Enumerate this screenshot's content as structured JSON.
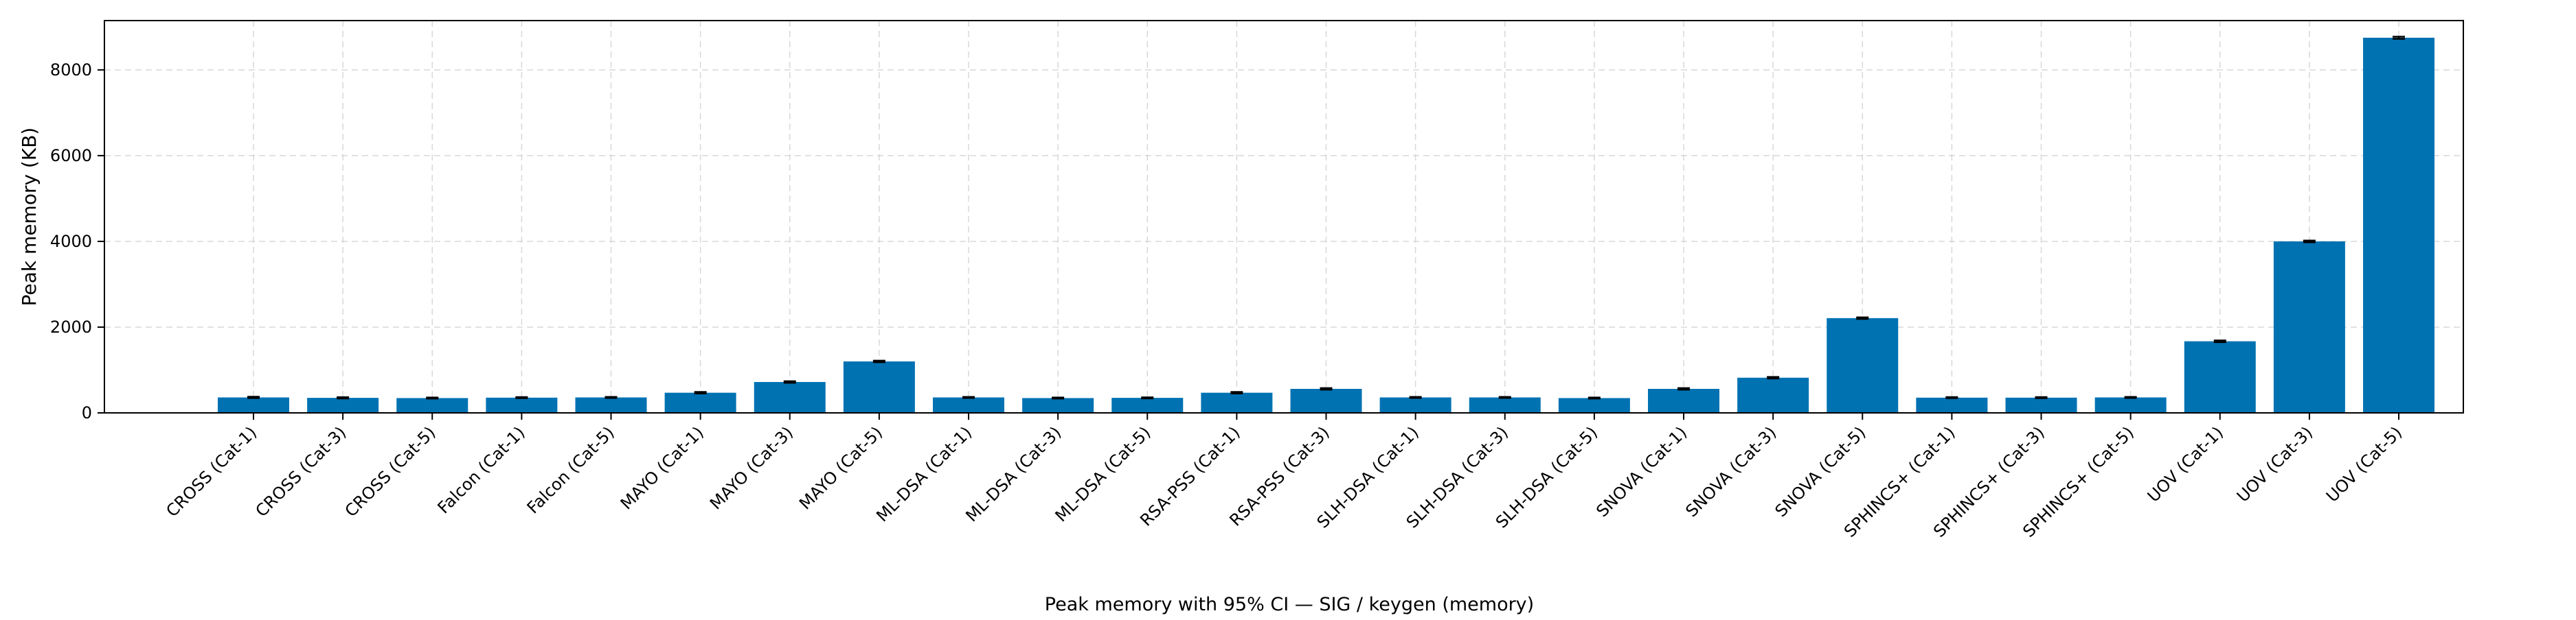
{
  "chart_data": {
    "type": "bar",
    "title": "",
    "xlabel": "Peak memory with 95% CI — SIG / keygen (memory)",
    "ylabel": "Peak memory (KB)",
    "ylim": [
      0,
      9150
    ],
    "yticks": [
      "0",
      "2000",
      "4000",
      "6000",
      "8000"
    ],
    "grid": true,
    "bar_color": "#0072b2",
    "categories": [
      "CROSS (Cat-1)",
      "CROSS (Cat-3)",
      "CROSS (Cat-5)",
      "Falcon (Cat-1)",
      "Falcon (Cat-5)",
      "MAYO (Cat-1)",
      "MAYO (Cat-3)",
      "MAYO (Cat-5)",
      "ML-DSA (Cat-1)",
      "ML-DSA (Cat-3)",
      "ML-DSA (Cat-5)",
      "RSA-PSS (Cat-1)",
      "RSA-PSS (Cat-3)",
      "SLH-DSA (Cat-1)",
      "SLH-DSA (Cat-3)",
      "SLH-DSA (Cat-5)",
      "SNOVA (Cat-1)",
      "SNOVA (Cat-3)",
      "SNOVA (Cat-5)",
      "SPHINCS+ (Cat-1)",
      "SPHINCS+ (Cat-3)",
      "SPHINCS+ (Cat-5)",
      "UOV (Cat-1)",
      "UOV (Cat-3)",
      "UOV (Cat-5)"
    ],
    "values": [
      360,
      350,
      345,
      355,
      360,
      470,
      720,
      1200,
      360,
      345,
      350,
      470,
      560,
      360,
      360,
      345,
      560,
      820,
      2210,
      355,
      355,
      360,
      1670,
      4000,
      8750
    ],
    "ci": [
      15,
      15,
      12,
      12,
      12,
      18,
      18,
      18,
      12,
      12,
      12,
      18,
      18,
      12,
      12,
      12,
      18,
      18,
      18,
      12,
      12,
      12,
      20,
      20,
      25
    ]
  }
}
